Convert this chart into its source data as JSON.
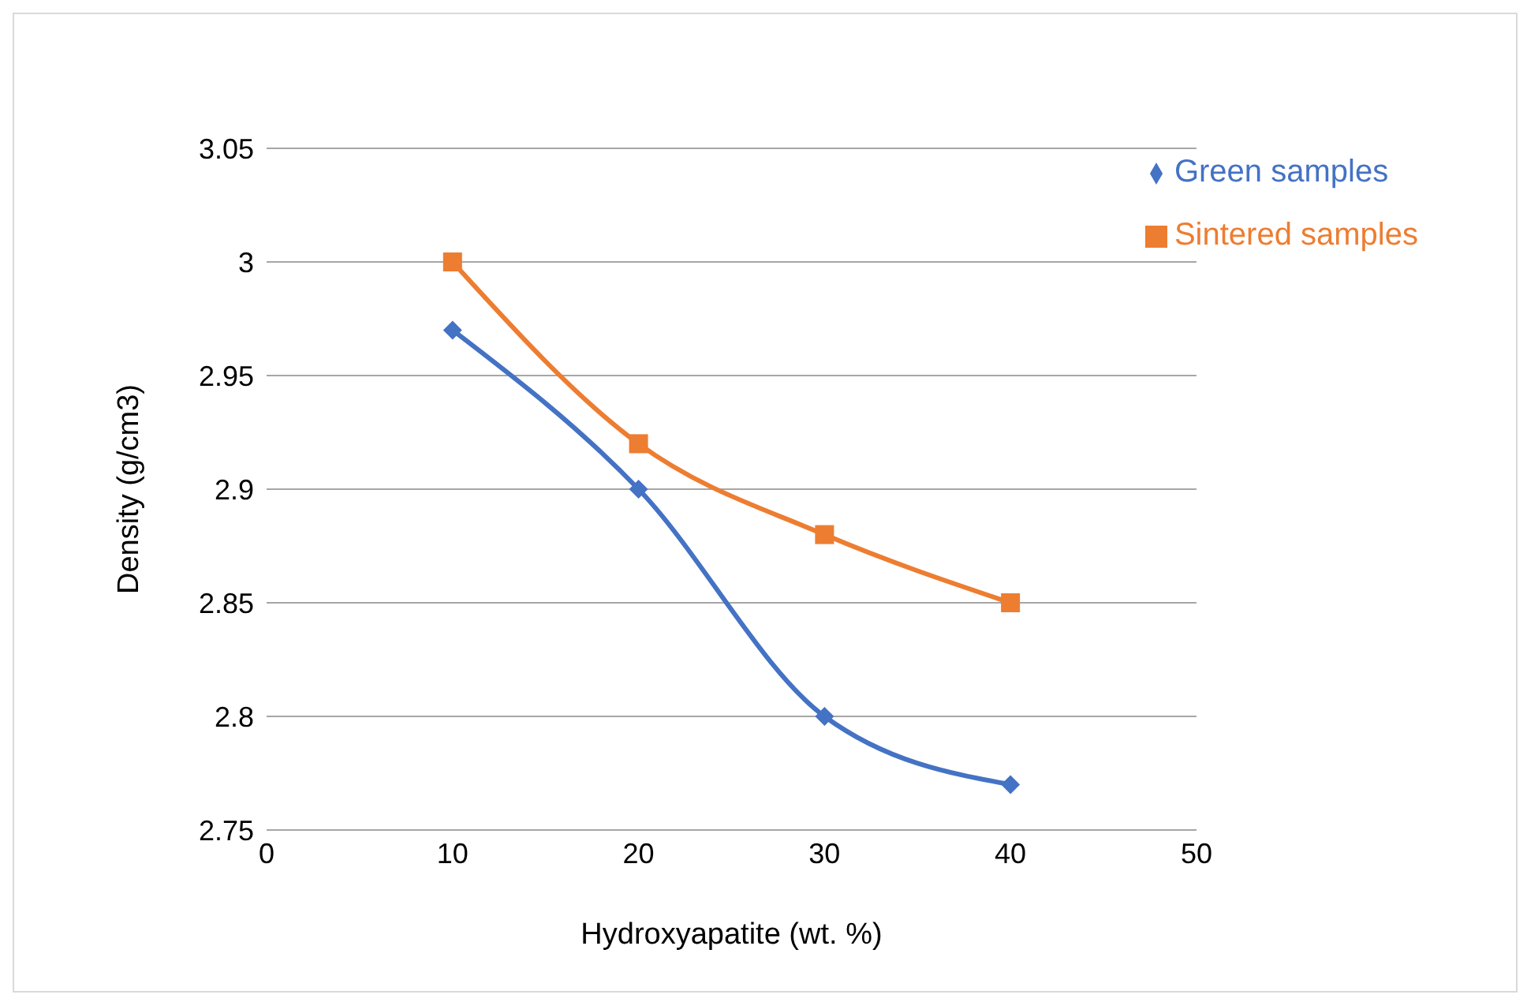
{
  "chart_data": {
    "type": "line",
    "xlabel": "Hydroxyapatite (wt. %)",
    "ylabel": "Density (g/cm3)",
    "x": [
      10,
      20,
      30,
      40
    ],
    "series": [
      {
        "name": "Green samples",
        "color": "#4472c4",
        "values": [
          2.97,
          2.9,
          2.8,
          2.77
        ],
        "marker": "diamond"
      },
      {
        "name": "Sintered samples",
        "color": "#ed7d31",
        "values": [
          3,
          2.92,
          2.88,
          2.85
        ],
        "marker": "square"
      }
    ],
    "xlim": [
      0,
      50
    ],
    "xticks": [
      0,
      10,
      20,
      30,
      40,
      50
    ],
    "ylim": [
      2.75,
      3.05
    ],
    "yticks": [
      2.75,
      2.8,
      2.85,
      2.9,
      2.95,
      3,
      3.05
    ],
    "grid": "y",
    "legend": "top right",
    "line_style": "solid"
  }
}
